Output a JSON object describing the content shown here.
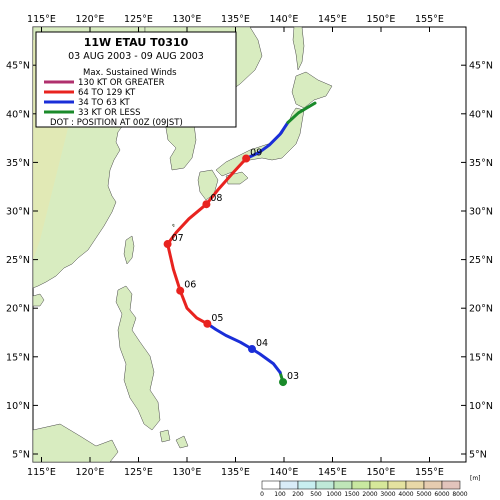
{
  "map": {
    "lon_ticks": [
      "115°E",
      "120°E",
      "125°E",
      "130°E",
      "135°E",
      "140°E",
      "145°E",
      "150°E",
      "155°E"
    ],
    "lat_ticks": [
      "5°N",
      "10°N",
      "15°N",
      "20°N",
      "25°N",
      "30°N",
      "35°N",
      "40°N",
      "45°N"
    ],
    "lon_values": [
      115,
      120,
      125,
      130,
      135,
      140,
      145,
      150,
      155
    ],
    "lat_values": [
      5,
      10,
      15,
      20,
      25,
      30,
      35,
      40,
      45
    ]
  },
  "legend": {
    "title": "11W  ETAU  T0310",
    "period": "03 AUG 2003 - 09 AUG 2003",
    "winds_heading": "Max. Sustained Winds",
    "categories": [
      {
        "label": "130 KT OR GREATER",
        "color": "#b0306e"
      },
      {
        "label": "64  TO 129 KT",
        "color": "#e8231f"
      },
      {
        "label": "34  TO 63 KT",
        "color": "#1a2ed8"
      },
      {
        "label": "33  KT OR LESS",
        "color": "#1a8a2a"
      }
    ],
    "dot_note": "DOT : POSITION AT 00Z (09JST)"
  },
  "track": {
    "segments": [
      {
        "color": "#1a8a2a",
        "points": [
          [
            139.9,
            12.4
          ],
          [
            139.6,
            13.4
          ]
        ]
      },
      {
        "color": "#1a2ed8",
        "points": [
          [
            139.6,
            13.4
          ],
          [
            138.9,
            14.3
          ],
          [
            137.5,
            15.3
          ],
          [
            136.7,
            15.8
          ],
          [
            135.5,
            16.5
          ],
          [
            134.0,
            17.2
          ],
          [
            133.0,
            17.8
          ],
          [
            132.1,
            18.4
          ]
        ]
      },
      {
        "color": "#e8231f",
        "points": [
          [
            132.1,
            18.4
          ],
          [
            131.0,
            19.0
          ],
          [
            130.0,
            20.0
          ],
          [
            129.3,
            21.8
          ],
          [
            128.6,
            24.0
          ],
          [
            128.0,
            26.6
          ],
          [
            128.9,
            27.8
          ],
          [
            130.2,
            29.2
          ],
          [
            132.0,
            30.7
          ],
          [
            133.3,
            32.3
          ],
          [
            134.8,
            34.0
          ],
          [
            136.1,
            35.4
          ]
        ]
      },
      {
        "color": "#1a2ed8",
        "points": [
          [
            136.1,
            35.4
          ],
          [
            137.4,
            36.0
          ],
          [
            138.5,
            36.8
          ],
          [
            139.6,
            37.9
          ],
          [
            140.4,
            39.1
          ]
        ]
      },
      {
        "color": "#1a8a2a",
        "points": [
          [
            140.4,
            39.1
          ],
          [
            141.5,
            40.1
          ],
          [
            143.2,
            41.1
          ]
        ]
      }
    ],
    "dots": [
      {
        "label": "03",
        "lon": 139.9,
        "lat": 12.4,
        "color": "#1a8a2a"
      },
      {
        "label": "04",
        "lon": 136.7,
        "lat": 15.8,
        "color": "#1a2ed8"
      },
      {
        "label": "05",
        "lon": 132.1,
        "lat": 18.4,
        "color": "#e8231f"
      },
      {
        "label": "06",
        "lon": 129.3,
        "lat": 21.8,
        "color": "#e8231f"
      },
      {
        "label": "07",
        "lon": 128.0,
        "lat": 26.6,
        "color": "#e8231f"
      },
      {
        "label": "08",
        "lon": 132.0,
        "lat": 30.7,
        "color": "#e8231f"
      },
      {
        "label": "09",
        "lon": 136.1,
        "lat": 35.4,
        "color": "#e8231f"
      }
    ]
  },
  "colorbar": {
    "labels": [
      "0",
      "100",
      "200",
      "500",
      "1000",
      "1500",
      "2000",
      "3000",
      "4000",
      "5000",
      "6000",
      "8000"
    ],
    "unit": "[m]",
    "colors": [
      "#ffffff",
      "#d9ecf8",
      "#c8eef0",
      "#bfe9d8",
      "#bfe6b8",
      "#c8e8a0",
      "#d6e89a",
      "#e4e2a0",
      "#e8d8a8",
      "#e6ccb0",
      "#e2c4bc"
    ]
  }
}
